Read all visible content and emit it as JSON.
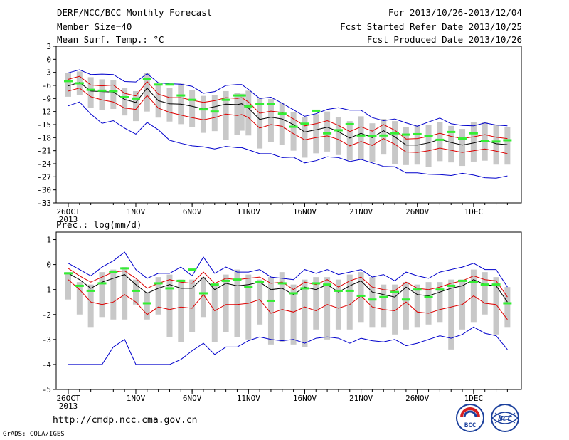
{
  "header": {
    "title": "DERF/NCC/BCC Monthly Forecast",
    "member_size": "Member Size=40",
    "variable": "Mean Surf. Temp.: °C",
    "period": "For 2013/10/26-2013/12/04",
    "start_date": "Fcst Started Refer Date 2013/10/25",
    "produced_date": "Fcst Produced Date 2013/10/26"
  },
  "footer": {
    "url": "http://cmdp.ncc.cma.gov.cn",
    "credit": "GrADS: COLA/IGES"
  },
  "logos": {
    "bcc": "BCC",
    "ncc": "NCC"
  },
  "colors": {
    "ensemble_mean": "#000000",
    "spread_bound": "#dd0000",
    "extreme_bound": "#0000cc",
    "member_spread_box": "#c8c8c8",
    "climatology": "#33ee33"
  },
  "chart_data": [
    {
      "type": "line",
      "title": "",
      "ylabel": "",
      "ylim": [
        -33,
        3
      ],
      "yticks": [
        3,
        0,
        -3,
        -6,
        -9,
        -12,
        -15,
        -18,
        -21,
        -24,
        -27,
        -30,
        -33
      ],
      "x_tick_labels": [
        "26OCT",
        "1NOV",
        "6NOV",
        "11NOV",
        "16NOV",
        "21NOV",
        "26NOV",
        "1DEC"
      ],
      "x_tick_days": [
        0,
        6,
        11,
        16,
        21,
        26,
        31,
        36
      ],
      "x_year_label": "2013",
      "x": [
        0,
        1,
        2,
        3,
        4,
        5,
        6,
        7,
        8,
        9,
        10,
        11,
        12,
        13,
        14,
        15,
        15.4,
        16,
        17,
        18,
        19,
        20,
        21,
        22,
        23,
        24,
        25,
        26,
        27,
        28,
        29,
        30,
        31,
        32,
        33,
        34,
        35,
        36,
        37,
        38,
        39
      ],
      "series": [
        {
          "role": "mean",
          "values": [
            -6.1,
            -5.3,
            -7.3,
            -7.4,
            -7.5,
            -9.2,
            -9.9,
            -6.6,
            -9.5,
            -10.2,
            -10.3,
            -10.8,
            -11.4,
            -10.9,
            -10.3,
            -10.4,
            -10.2,
            -11.2,
            -13.8,
            -13.3,
            -13.7,
            -15.0,
            -16.7,
            -16.2,
            -15.6,
            -16.6,
            -18.1,
            -17.0,
            -18.0,
            -16.4,
            -17.8,
            -19.7,
            -19.7,
            -19.2,
            -18.4,
            -19.1,
            -19.7,
            -19.2,
            -18.6,
            -19.4,
            -19.6
          ]
        },
        {
          "role": "upper_spread",
          "values": [
            -4.6,
            -3.9,
            -5.9,
            -6.1,
            -5.9,
            -7.8,
            -8.4,
            -5.1,
            -8.0,
            -8.8,
            -8.8,
            -9.4,
            -9.9,
            -9.5,
            -8.8,
            -9.0,
            -8.8,
            -9.8,
            -12.4,
            -11.9,
            -12.2,
            -13.7,
            -15.3,
            -14.8,
            -14.1,
            -15.2,
            -16.6,
            -15.5,
            -16.5,
            -15.0,
            -16.3,
            -18.3,
            -18.2,
            -17.7,
            -17.0,
            -17.7,
            -18.2,
            -17.8,
            -17.3,
            -17.9,
            -18.2
          ]
        },
        {
          "role": "lower_spread",
          "values": [
            -7.3,
            -6.6,
            -8.6,
            -9.3,
            -9.8,
            -11.2,
            -11.5,
            -8.3,
            -11.2,
            -12.2,
            -12.8,
            -13.4,
            -13.9,
            -13.4,
            -12.6,
            -12.9,
            -12.7,
            -13.4,
            -15.8,
            -15.0,
            -15.4,
            -17.1,
            -18.5,
            -18.0,
            -17.6,
            -18.4,
            -19.9,
            -18.9,
            -19.8,
            -18.2,
            -19.5,
            -21.3,
            -21.4,
            -21.0,
            -20.4,
            -20.9,
            -21.4,
            -21.0,
            -20.6,
            -21.1,
            -21.7
          ]
        },
        {
          "role": "max",
          "values": [
            -3.1,
            -2.4,
            -3.5,
            -3.4,
            -3.5,
            -5.1,
            -5.2,
            -3.3,
            -5.4,
            -5.6,
            -5.7,
            -6.2,
            -7.8,
            -7.4,
            -6.0,
            -5.8,
            -5.8,
            -6.9,
            -9.0,
            -8.7,
            -10.1,
            -11.6,
            -13.1,
            -12.5,
            -11.5,
            -11.1,
            -11.7,
            -11.7,
            -13.4,
            -14.1,
            -13.7,
            -14.6,
            -15.4,
            -14.4,
            -13.5,
            -14.8,
            -15.2,
            -15.3,
            -14.6,
            -15.1,
            -15.3
          ]
        },
        {
          "role": "min",
          "values": [
            -10.7,
            -9.8,
            -12.6,
            -14.7,
            -14.1,
            -15.8,
            -17.2,
            -14.5,
            -16.2,
            -18.6,
            -19.3,
            -19.9,
            -20.1,
            -20.6,
            -20.0,
            -20.3,
            -20.3,
            -20.8,
            -21.7,
            -21.7,
            -22.6,
            -22.5,
            -23.8,
            -23.3,
            -22.4,
            -22.6,
            -23.5,
            -23.0,
            -23.8,
            -24.6,
            -24.7,
            -26.1,
            -26.1,
            -26.4,
            -26.5,
            -26.7,
            -26.2,
            -26.6,
            -27.2,
            -27.3,
            -26.8
          ]
        }
      ],
      "boxes": [
        [
          -3.2,
          -8.6
        ],
        [
          -2.8,
          -8.2
        ],
        [
          -4.1,
          -11.1
        ],
        [
          -4.6,
          -11.6
        ],
        [
          -4.8,
          -11.4
        ],
        [
          -6.5,
          -12.9
        ],
        [
          -7.3,
          -14.2
        ],
        [
          -3.1,
          -12.0
        ],
        [
          -5.9,
          -13.4
        ],
        [
          -6.5,
          -14.3
        ],
        [
          -5.6,
          -14.9
        ],
        [
          -7.1,
          -15.5
        ],
        [
          -8.4,
          -16.9
        ],
        [
          -8.2,
          -16.5
        ],
        [
          -7.3,
          -18.5
        ],
        [
          -7.8,
          -17.3
        ],
        [
          -7.9,
          -16.4
        ],
        [
          -7.2,
          -17.5
        ],
        [
          -9.0,
          -20.5
        ],
        [
          -9.1,
          -19.0
        ],
        [
          -10.0,
          -19.7
        ],
        [
          -12.1,
          -21.0
        ],
        [
          -13.2,
          -22.6
        ],
        [
          -12.6,
          -21.6
        ],
        [
          -12.0,
          -21.2
        ],
        [
          -13.3,
          -22.0
        ],
        [
          -14.2,
          -23.2
        ],
        [
          -13.1,
          -22.9
        ],
        [
          -14.7,
          -23.5
        ],
        [
          -13.7,
          -21.9
        ],
        [
          -14.2,
          -24.1
        ],
        [
          -15.5,
          -24.3
        ],
        [
          -15.2,
          -24.2
        ],
        [
          -15.1,
          -24.7
        ],
        [
          -14.4,
          -23.4
        ],
        [
          -15.3,
          -23.7
        ],
        [
          -16.0,
          -24.5
        ],
        [
          -14.4,
          -23.5
        ],
        [
          -14.5,
          -23.3
        ],
        [
          -15.1,
          -24.2
        ],
        [
          -15.6,
          -24.2
        ]
      ],
      "climatology": [
        -5.0,
        -5.5,
        -7.0,
        -7.2,
        -7.3,
        -8.7,
        -9.0,
        -4.5,
        -5.8,
        -5.8,
        -8.3,
        -9.3,
        -11.5,
        -12.0,
        -9.3,
        -8.3,
        -8.3,
        -10.8,
        -10.3,
        -10.3,
        -12.5,
        -15.5,
        -14.8,
        -11.8,
        -17.0,
        -16.3,
        -14.9,
        -17.5,
        -17.6,
        -17.5,
        -17.0,
        -17.3,
        -17.2,
        -17.6,
        -18.5,
        -16.7,
        -18.2,
        -17.0,
        -18.7,
        -18.9,
        -18.6
      ]
    },
    {
      "type": "line",
      "title": "Prec.: log(mm/d)",
      "ylabel": "",
      "ylim": [
        -5,
        1.3
      ],
      "yticks": [
        1,
        0,
        -1,
        -2,
        -3,
        -4,
        -5
      ],
      "x_tick_labels": [
        "26OCT",
        "1NOV",
        "6NOV",
        "11NOV",
        "16NOV",
        "21NOV",
        "26NOV",
        "1DEC"
      ],
      "x_tick_days": [
        0,
        6,
        11,
        16,
        21,
        26,
        31,
        36
      ],
      "x_year_label": "2013",
      "x": [
        0,
        1,
        2,
        3,
        4,
        5,
        6,
        7,
        8,
        9,
        10,
        11,
        12,
        13,
        14,
        15,
        16,
        17,
        18,
        19,
        20,
        21,
        22,
        23,
        24,
        25,
        26,
        27,
        28,
        29,
        30,
        31,
        32,
        33,
        34,
        35,
        36,
        37,
        38,
        39
      ],
      "series": [
        {
          "role": "mean",
          "values": [
            -0.35,
            -0.6,
            -0.95,
            -0.7,
            -0.55,
            -0.4,
            -0.8,
            -1.15,
            -0.95,
            -0.8,
            -0.95,
            -0.95,
            -0.5,
            -1.0,
            -0.75,
            -0.85,
            -0.8,
            -0.7,
            -1.0,
            -0.95,
            -1.2,
            -0.9,
            -1.0,
            -0.8,
            -1.1,
            -0.85,
            -0.65,
            -1.1,
            -1.2,
            -1.3,
            -0.9,
            -1.2,
            -1.25,
            -1.1,
            -0.95,
            -0.85,
            -0.6,
            -0.8,
            -0.85,
            -1.5
          ]
        },
        {
          "role": "upper_spread",
          "values": [
            -0.15,
            -0.45,
            -0.7,
            -0.5,
            -0.3,
            -0.25,
            -0.55,
            -0.95,
            -0.75,
            -0.6,
            -0.7,
            -0.75,
            -0.3,
            -0.75,
            -0.55,
            -0.6,
            -0.55,
            -0.5,
            -0.75,
            -0.7,
            -1.0,
            -0.7,
            -0.8,
            -0.6,
            -0.9,
            -0.65,
            -0.5,
            -0.9,
            -1.0,
            -1.05,
            -0.7,
            -0.95,
            -1.0,
            -0.9,
            -0.75,
            -0.65,
            -0.45,
            -0.6,
            -0.65,
            -1.3
          ]
        },
        {
          "role": "lower_spread",
          "values": [
            -0.6,
            -1.0,
            -1.5,
            -1.6,
            -1.5,
            -1.2,
            -1.5,
            -2.0,
            -1.7,
            -1.8,
            -1.7,
            -1.75,
            -1.2,
            -1.85,
            -1.6,
            -1.6,
            -1.55,
            -1.4,
            -1.95,
            -1.8,
            -1.9,
            -1.7,
            -1.85,
            -1.6,
            -1.75,
            -1.6,
            -1.25,
            -1.7,
            -1.8,
            -1.85,
            -1.5,
            -1.9,
            -1.95,
            -1.8,
            -1.7,
            -1.6,
            -1.25,
            -1.55,
            -1.6,
            -2.2
          ]
        },
        {
          "role": "max",
          "values": [
            0.05,
            -0.2,
            -0.45,
            -0.1,
            0.15,
            0.5,
            -0.2,
            -0.55,
            -0.35,
            -0.35,
            -0.1,
            -0.45,
            0.3,
            -0.35,
            -0.1,
            -0.3,
            -0.3,
            -0.2,
            -0.5,
            -0.55,
            -0.6,
            -0.2,
            -0.35,
            -0.2,
            -0.4,
            -0.3,
            -0.2,
            -0.5,
            -0.4,
            -0.65,
            -0.3,
            -0.45,
            -0.55,
            -0.3,
            -0.2,
            -0.1,
            0.05,
            -0.2,
            -0.2,
            -0.9
          ]
        },
        {
          "role": "min",
          "values": [
            -4.0,
            -4.0,
            -4.0,
            -4.0,
            -3.3,
            -3.0,
            -4.0,
            -4.0,
            -4.0,
            -4.0,
            -3.8,
            -3.45,
            -3.15,
            -3.6,
            -3.3,
            -3.3,
            -3.05,
            -2.9,
            -3.0,
            -3.05,
            -3.0,
            -3.15,
            -2.95,
            -2.9,
            -2.95,
            -3.15,
            -2.95,
            -3.05,
            -3.1,
            -3.0,
            -3.25,
            -3.15,
            -3.0,
            -2.85,
            -2.95,
            -2.8,
            -2.5,
            -2.75,
            -2.85,
            -3.4
          ]
        }
      ],
      "boxes": [
        [
          -0.3,
          -1.4
        ],
        [
          -0.7,
          -2.0
        ],
        [
          -0.8,
          -2.5
        ],
        [
          -0.3,
          -2.1
        ],
        [
          -0.2,
          -2.2
        ],
        [
          -0.1,
          -2.2
        ],
        [
          -0.6,
          -1.6
        ],
        [
          -1.1,
          -2.2
        ],
        [
          -0.5,
          -2.0
        ],
        [
          -0.4,
          -2.9
        ],
        [
          -0.6,
          -3.1
        ],
        [
          -0.6,
          -2.7
        ],
        [
          -0.5,
          -2.1
        ],
        [
          -0.8,
          -3.1
        ],
        [
          -0.4,
          -2.7
        ],
        [
          -0.2,
          -2.9
        ],
        [
          -0.4,
          -3.0
        ],
        [
          -0.6,
          -2.4
        ],
        [
          -0.5,
          -3.2
        ],
        [
          -0.3,
          -3.1
        ],
        [
          -0.8,
          -3.2
        ],
        [
          -0.6,
          -3.3
        ],
        [
          -0.5,
          -2.6
        ],
        [
          -0.5,
          -3.0
        ],
        [
          -0.6,
          -2.6
        ],
        [
          -0.4,
          -2.6
        ],
        [
          -0.3,
          -2.3
        ],
        [
          -0.5,
          -2.5
        ],
        [
          -0.8,
          -2.5
        ],
        [
          -0.8,
          -2.8
        ],
        [
          -0.7,
          -2.6
        ],
        [
          -0.8,
          -2.5
        ],
        [
          -0.7,
          -2.4
        ],
        [
          -0.7,
          -2.3
        ],
        [
          -0.6,
          -3.4
        ],
        [
          -0.6,
          -2.6
        ],
        [
          -0.2,
          -2.3
        ],
        [
          -0.3,
          -2.0
        ],
        [
          -0.5,
          -2.8
        ],
        [
          -0.9,
          -2.5
        ]
      ],
      "climatology": [
        -0.35,
        -0.85,
        -1.05,
        -0.75,
        -0.3,
        -0.15,
        -1.05,
        -1.55,
        -0.75,
        -0.95,
        -0.65,
        -0.2,
        -1.15,
        -0.8,
        -0.65,
        -0.6,
        -0.9,
        -0.7,
        -1.45,
        -0.75,
        -1.15,
        -0.95,
        -0.75,
        -0.8,
        -1.05,
        -1.05,
        -1.25,
        -1.4,
        -1.3,
        -1.1,
        -1.4,
        -1.0,
        -1.3,
        -1.0,
        -0.85,
        -0.65,
        -0.7,
        -0.8,
        -0.8,
        -1.55
      ]
    }
  ]
}
